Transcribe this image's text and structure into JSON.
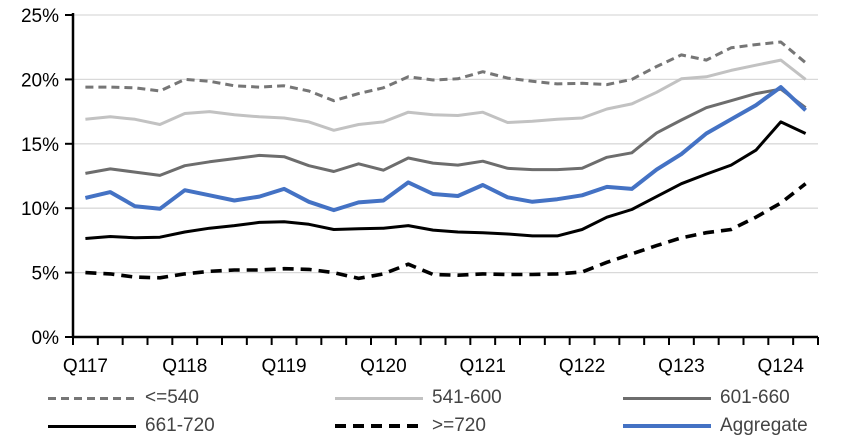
{
  "chart_data": {
    "type": "line",
    "title": "",
    "x_axis": {
      "tick_labels": [
        "Q117",
        "Q118",
        "Q119",
        "Q120",
        "Q121",
        "Q122",
        "Q123",
        "Q124"
      ],
      "quarters_per_label": 4,
      "n_points": 30,
      "first_point": "Q1 2017",
      "last_point": "Q2 2024"
    },
    "y_axis": {
      "tick_labels": [
        "0%",
        "5%",
        "10%",
        "15%",
        "20%",
        "25%"
      ],
      "min": 0,
      "max": 25,
      "step": 5,
      "unit": "%"
    },
    "grid": true,
    "legend_position": "bottom",
    "series": [
      {
        "name": "<=540",
        "color": "#767676",
        "dash": "8 5",
        "width": 3,
        "values": [
          19.4,
          19.4,
          19.35,
          19.1,
          20.0,
          19.85,
          19.5,
          19.4,
          19.5,
          19.1,
          18.35,
          18.9,
          19.35,
          20.2,
          19.95,
          20.05,
          20.6,
          20.1,
          19.85,
          19.65,
          19.7,
          19.6,
          20.0,
          21.0,
          21.9,
          21.5,
          22.45,
          22.7,
          22.9,
          21.3
        ]
      },
      {
        "name": "541-600",
        "color": "#c2c2c2",
        "dash": null,
        "width": 3,
        "values": [
          16.9,
          17.1,
          16.9,
          16.5,
          17.35,
          17.5,
          17.25,
          17.1,
          17.0,
          16.7,
          16.05,
          16.5,
          16.7,
          17.45,
          17.25,
          17.2,
          17.45,
          16.65,
          16.75,
          16.9,
          17.0,
          17.7,
          18.1,
          19.0,
          20.05,
          20.2,
          20.7,
          21.1,
          21.5,
          20.0
        ]
      },
      {
        "name": "601-660",
        "color": "#6d6d6d",
        "dash": null,
        "width": 3,
        "values": [
          12.7,
          13.05,
          12.8,
          12.55,
          13.3,
          13.6,
          13.85,
          14.1,
          14.0,
          13.3,
          12.85,
          13.45,
          12.95,
          13.9,
          13.5,
          13.35,
          13.65,
          13.1,
          13.0,
          13.0,
          13.1,
          13.95,
          14.3,
          15.85,
          16.85,
          17.8,
          18.35,
          18.9,
          19.25,
          17.8
        ]
      },
      {
        "name": "661-720",
        "color": "#000000",
        "dash": null,
        "width": 3,
        "values": [
          7.65,
          7.8,
          7.7,
          7.75,
          8.15,
          8.45,
          8.65,
          8.9,
          8.95,
          8.75,
          8.35,
          8.4,
          8.45,
          8.65,
          8.3,
          8.15,
          8.1,
          8.0,
          7.85,
          7.85,
          8.35,
          9.3,
          9.9,
          10.9,
          11.9,
          12.65,
          13.35,
          14.5,
          16.7,
          15.8
        ]
      },
      {
        "name": ">=720",
        "color": "#000000",
        "dash": "11 7",
        "width": 3.6,
        "values": [
          5.0,
          4.9,
          4.65,
          4.6,
          4.9,
          5.1,
          5.2,
          5.2,
          5.3,
          5.25,
          5.0,
          4.55,
          4.9,
          5.65,
          4.85,
          4.8,
          4.9,
          4.85,
          4.85,
          4.9,
          5.05,
          5.8,
          6.45,
          7.1,
          7.7,
          8.1,
          8.35,
          9.3,
          10.4,
          11.9
        ]
      },
      {
        "name": "Aggregate",
        "color": "#4472c4",
        "dash": null,
        "width": 4,
        "values": [
          10.8,
          11.25,
          10.15,
          9.95,
          11.4,
          11.0,
          10.6,
          10.9,
          11.5,
          10.5,
          9.85,
          10.45,
          10.6,
          12.0,
          11.1,
          10.95,
          11.8,
          10.85,
          10.5,
          10.7,
          11.0,
          11.65,
          11.5,
          13.0,
          14.2,
          15.8,
          16.9,
          18.0,
          19.4,
          17.6
        ]
      }
    ]
  },
  "colors": {
    "axis": "#000000",
    "gridline": "#d9d9d9",
    "tick_label": "#000000",
    "legend_text": "#444444",
    "background": "#ffffff"
  }
}
